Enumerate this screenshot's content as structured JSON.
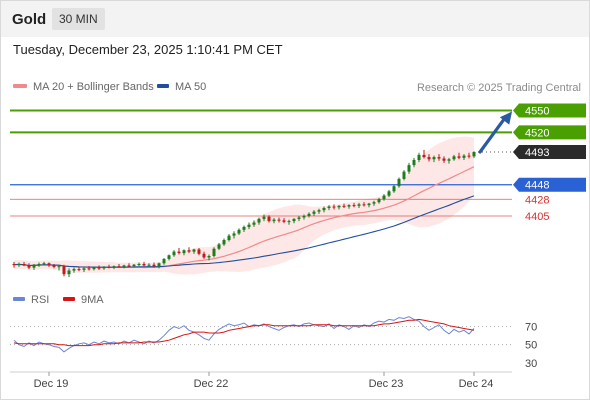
{
  "header": {
    "symbol": "Gold",
    "interval": "30 MIN"
  },
  "timestamp": "Tuesday, December 23, 2025 1:10:41 PM CET",
  "legend": {
    "ma20": "MA 20 + Bollinger Bands",
    "ma50": "MA 50",
    "copyright": "Research © 2025 Trading Central"
  },
  "rsi_legend": {
    "rsi": "RSI",
    "ma": "9MA"
  },
  "colors": {
    "candle_up": "#1e7b1e",
    "candle_down": "#c21a1a",
    "ma20": "#ef8a8a",
    "bollinger_fill": "#fde3e3",
    "ma50": "#1f4f9e",
    "resistance": "#4aa000",
    "pivot": "#2a62d6",
    "support": "#d93030",
    "arrow": "#2a5aa0",
    "rsi_line": "#6a86d6",
    "rsi_ma": "#d81414"
  },
  "chart_data": [
    {
      "type": "candlestick",
      "title": "Gold",
      "x_ticks": [
        "Dec 19",
        "Dec 22",
        "Dec 23",
        "Dec 24"
      ],
      "x_tick_index": [
        7,
        39,
        74,
        92
      ],
      "ylim": [
        4306,
        4570
      ],
      "last_price": 4493,
      "forecast_arrow": {
        "from_index": 92,
        "from_value": 4493,
        "to_value": 4550
      },
      "levels": [
        {
          "label": "4550",
          "value": 4550,
          "kind": "resistance"
        },
        {
          "label": "4520",
          "value": 4520,
          "kind": "resistance"
        },
        {
          "label": "4493",
          "value": 4493,
          "kind": "last"
        },
        {
          "label": "4448",
          "value": 4448,
          "kind": "pivot"
        },
        {
          "label": "4428",
          "value": 4428,
          "kind": "support"
        },
        {
          "label": "4405",
          "value": 4405,
          "kind": "support"
        }
      ],
      "ohlc": [
        [
          4339,
          4342,
          4334,
          4338
        ],
        [
          4338,
          4341,
          4335,
          4339
        ],
        [
          4339,
          4342,
          4336,
          4337
        ],
        [
          4337,
          4340,
          4332,
          4334
        ],
        [
          4334,
          4339,
          4331,
          4338
        ],
        [
          4338,
          4341,
          4335,
          4339
        ],
        [
          4339,
          4342,
          4337,
          4340
        ],
        [
          4340,
          4341,
          4335,
          4337
        ],
        [
          4337,
          4339,
          4333,
          4335
        ],
        [
          4335,
          4338,
          4330,
          4336
        ],
        [
          4336,
          4338,
          4322,
          4325
        ],
        [
          4325,
          4333,
          4321,
          4330
        ],
        [
          4330,
          4334,
          4327,
          4332
        ],
        [
          4332,
          4335,
          4329,
          4331
        ],
        [
          4331,
          4334,
          4328,
          4333
        ],
        [
          4333,
          4336,
          4330,
          4332
        ],
        [
          4332,
          4335,
          4330,
          4334
        ],
        [
          4334,
          4337,
          4331,
          4333
        ],
        [
          4333,
          4336,
          4331,
          4335
        ],
        [
          4335,
          4338,
          4333,
          4334
        ],
        [
          4334,
          4337,
          4332,
          4336
        ],
        [
          4336,
          4339,
          4334,
          4335
        ],
        [
          4335,
          4338,
          4333,
          4337
        ],
        [
          4337,
          4340,
          4335,
          4336
        ],
        [
          4336,
          4339,
          4334,
          4338
        ],
        [
          4338,
          4341,
          4336,
          4339
        ],
        [
          4339,
          4342,
          4336,
          4337
        ],
        [
          4337,
          4340,
          4335,
          4338
        ],
        [
          4338,
          4341,
          4334,
          4336
        ],
        [
          4336,
          4341,
          4333,
          4340
        ],
        [
          4340,
          4347,
          4338,
          4346
        ],
        [
          4346,
          4352,
          4344,
          4351
        ],
        [
          4351,
          4358,
          4349,
          4356
        ],
        [
          4356,
          4361,
          4352,
          4354
        ],
        [
          4354,
          4359,
          4351,
          4358
        ],
        [
          4358,
          4362,
          4354,
          4356
        ],
        [
          4356,
          4360,
          4353,
          4359
        ],
        [
          4359,
          4361,
          4351,
          4353
        ],
        [
          4353,
          4356,
          4346,
          4348
        ],
        [
          4348,
          4352,
          4344,
          4350
        ],
        [
          4350,
          4362,
          4348,
          4360
        ],
        [
          4360,
          4368,
          4358,
          4366
        ],
        [
          4366,
          4374,
          4364,
          4372
        ],
        [
          4372,
          4380,
          4370,
          4378
        ],
        [
          4378,
          4384,
          4374,
          4381
        ],
        [
          4381,
          4388,
          4379,
          4386
        ],
        [
          4386,
          4392,
          4383,
          4390
        ],
        [
          4390,
          4396,
          4387,
          4393
        ],
        [
          4393,
          4399,
          4390,
          4396
        ],
        [
          4396,
          4403,
          4393,
          4401
        ],
        [
          4401,
          4407,
          4398,
          4404
        ],
        [
          4404,
          4406,
          4396,
          4398
        ],
        [
          4398,
          4402,
          4395,
          4400
        ],
        [
          4400,
          4403,
          4396,
          4399
        ],
        [
          4399,
          4402,
          4395,
          4397
        ],
        [
          4397,
          4400,
          4393,
          4398
        ],
        [
          4398,
          4402,
          4395,
          4401
        ],
        [
          4401,
          4405,
          4398,
          4403
        ],
        [
          4403,
          4407,
          4400,
          4405
        ],
        [
          4405,
          4410,
          4403,
          4408
        ],
        [
          4408,
          4413,
          4405,
          4411
        ],
        [
          4411,
          4415,
          4408,
          4413
        ],
        [
          4413,
          4418,
          4410,
          4416
        ],
        [
          4416,
          4420,
          4413,
          4418
        ],
        [
          4418,
          4421,
          4414,
          4417
        ],
        [
          4417,
          4420,
          4414,
          4419
        ],
        [
          4419,
          4422,
          4416,
          4418
        ],
        [
          4418,
          4421,
          4415,
          4420
        ],
        [
          4420,
          4423,
          4417,
          4419
        ],
        [
          4419,
          4423,
          4416,
          4421
        ],
        [
          4421,
          4424,
          4418,
          4420
        ],
        [
          4420,
          4423,
          4417,
          4422
        ],
        [
          4422,
          4426,
          4419,
          4424
        ],
        [
          4424,
          4430,
          4422,
          4428
        ],
        [
          4428,
          4435,
          4426,
          4433
        ],
        [
          4433,
          4441,
          4431,
          4439
        ],
        [
          4439,
          4448,
          4437,
          4446
        ],
        [
          4446,
          4458,
          4444,
          4456
        ],
        [
          4456,
          4468,
          4454,
          4466
        ],
        [
          4466,
          4478,
          4463,
          4475
        ],
        [
          4475,
          4485,
          4472,
          4482
        ],
        [
          4482,
          4492,
          4479,
          4489
        ],
        [
          4489,
          4496,
          4484,
          4486
        ],
        [
          4486,
          4490,
          4480,
          4483
        ],
        [
          4483,
          4488,
          4479,
          4486
        ],
        [
          4486,
          4490,
          4481,
          4484
        ],
        [
          4484,
          4487,
          4478,
          4481
        ],
        [
          4481,
          4485,
          4477,
          4483
        ],
        [
          4483,
          4489,
          4481,
          4487
        ],
        [
          4487,
          4492,
          4483,
          4485
        ],
        [
          4485,
          4490,
          4482,
          4488
        ],
        [
          4488,
          4492,
          4484,
          4487
        ],
        [
          4487,
          4494,
          4485,
          4493
        ]
      ]
    },
    {
      "type": "line",
      "title": "RSI",
      "series": [
        {
          "name": "RSI",
          "values": [
            55,
            50,
            48,
            52,
            49,
            53,
            51,
            50,
            48,
            47,
            42,
            46,
            49,
            51,
            52,
            50,
            53,
            51,
            54,
            52,
            53,
            51,
            54,
            52,
            55,
            53,
            51,
            54,
            52,
            55,
            60,
            66,
            70,
            68,
            71,
            66,
            64,
            61,
            57,
            55,
            62,
            67,
            70,
            73,
            71,
            72,
            74,
            70,
            72,
            71,
            73,
            70,
            68,
            66,
            69,
            71,
            72,
            70,
            73,
            74,
            72,
            71,
            70,
            73,
            68,
            72,
            70,
            67,
            71,
            69,
            72,
            70,
            74,
            76,
            75,
            78,
            77,
            80,
            79,
            81,
            78,
            76,
            70,
            66,
            69,
            72,
            66,
            62,
            67,
            64,
            66,
            62,
            68
          ]
        },
        {
          "name": "9MA",
          "values": [
            52,
            51,
            51,
            51,
            51,
            51,
            51,
            51,
            51,
            50,
            50,
            49,
            49,
            49,
            49,
            49,
            50,
            50,
            51,
            51,
            51,
            52,
            52,
            52,
            52,
            52,
            53,
            53,
            53,
            53,
            54,
            55,
            57,
            59,
            61,
            62,
            64,
            64,
            64,
            63,
            63,
            63,
            64,
            66,
            67,
            68,
            69,
            70,
            71,
            71,
            72,
            72,
            71,
            71,
            71,
            71,
            71,
            71,
            71,
            71,
            72,
            72,
            72,
            72,
            71,
            71,
            71,
            71,
            71,
            71,
            71,
            71,
            71,
            72,
            73,
            73,
            74,
            75,
            76,
            77,
            77,
            78,
            77,
            76,
            75,
            74,
            73,
            71,
            70,
            69,
            68,
            67,
            66
          ]
        }
      ],
      "y_ticks": [
        70,
        50,
        30
      ],
      "ylim": [
        22,
        84
      ],
      "bands": [
        70,
        50
      ]
    }
  ]
}
